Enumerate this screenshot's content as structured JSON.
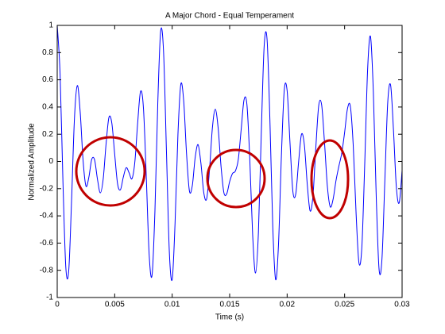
{
  "chart_data": {
    "type": "line",
    "title": "A Major Chord - Equal Temperament",
    "xlabel": "Time (s)",
    "ylabel": "Normalized Amplitude",
    "color": "#0000ff",
    "grid": false,
    "xlim": [
      0,
      0.03
    ],
    "ylim": [
      -1,
      1
    ],
    "xticks": [
      0,
      0.005,
      0.01,
      0.015,
      0.02,
      0.025,
      0.03
    ],
    "yticks": [
      -1,
      -0.8,
      -0.6,
      -0.4,
      -0.2,
      0,
      0.2,
      0.4,
      0.6,
      0.8,
      1
    ],
    "x": [
      0,
      0.00025,
      0.0005,
      0.00075,
      0.001,
      0.00125,
      0.0015,
      0.00175,
      0.002,
      0.00225,
      0.0025,
      0.00275,
      0.003,
      0.00325,
      0.0035,
      0.00375,
      0.004,
      0.00425,
      0.0045,
      0.00475,
      0.005,
      0.00525,
      0.0055,
      0.00575,
      0.006,
      0.00625,
      0.0065,
      0.00675,
      0.007,
      0.00725,
      0.0075,
      0.00775,
      0.008,
      0.00825,
      0.0085,
      0.00875,
      0.009,
      0.00925,
      0.0095,
      0.00975,
      0.01,
      0.01025,
      0.0105,
      0.01075,
      0.011,
      0.01125,
      0.0115,
      0.01175,
      0.012,
      0.01225,
      0.0125,
      0.01275,
      0.013,
      0.01325,
      0.0135,
      0.01375,
      0.014,
      0.01425,
      0.0145,
      0.01475,
      0.015,
      0.01525,
      0.0155,
      0.01575,
      0.016,
      0.01625,
      0.0165,
      0.01675,
      0.017,
      0.01725,
      0.0175,
      0.01775,
      0.018,
      0.01825,
      0.0185,
      0.01875,
      0.019,
      0.01925,
      0.0195,
      0.01975,
      0.02,
      0.02025,
      0.0205,
      0.02075,
      0.021,
      0.02125,
      0.0215,
      0.02175,
      0.022,
      0.02225,
      0.0225,
      0.02275,
      0.023,
      0.02325,
      0.0235,
      0.02375,
      0.024,
      0.02425,
      0.0245,
      0.02475,
      0.025,
      0.02525,
      0.0255,
      0.02575,
      0.026,
      0.02625,
      0.0265,
      0.02675,
      0.027,
      0.02725,
      0.0275,
      0.02775,
      0.028,
      0.02825,
      0.0285,
      0.02875,
      0.029,
      0.02925,
      0.0295,
      0.02975,
      0.03
    ],
    "values": [
      1,
      0.642,
      -0.154,
      -0.781,
      -0.804,
      -0.284,
      0.318,
      0.558,
      0.362,
      0.007,
      -0.181,
      -0.117,
      0.015,
      0.012,
      -0.13,
      -0.231,
      -0.129,
      0.129,
      0.324,
      0.282,
      0.053,
      -0.164,
      -0.208,
      -0.115,
      -0.046,
      -0.083,
      -0.127,
      -0.006,
      0.285,
      0.515,
      0.393,
      -0.119,
      -0.687,
      -0.836,
      -0.364,
      0.432,
      0.96,
      0.806,
      0.08,
      -0.658,
      -0.868,
      -0.455,
      0.195,
      0.566,
      0.447,
      0.056,
      -0.217,
      -0.179,
      0.028,
      0.124,
      -0.013,
      -0.23,
      -0.275,
      -0.059,
      0.248,
      0.384,
      0.245,
      -0.036,
      -0.23,
      -0.237,
      -0.148,
      -0.088,
      -0.07,
      0.014,
      0.233,
      0.452,
      0.42,
      0.019,
      -0.539,
      -0.82,
      -0.527,
      0.203,
      0.845,
      0.902,
      0.311,
      -0.477,
      -0.868,
      -0.608,
      0.037,
      0.524,
      0.52,
      0.135,
      -0.221,
      -0.239,
      -0.002,
      0.2,
      0.121,
      -0.167,
      -0.364,
      -0.249,
      0.108,
      0.412,
      0.417,
      0.141,
      -0.183,
      -0.333,
      -0.277,
      -0.141,
      -0.035,
      0.06,
      0.213,
      0.388,
      0.405,
      0.117,
      -0.385,
      -0.747,
      -0.628,
      -0.019,
      0.673,
      0.919,
      0.508,
      -0.258,
      -0.795,
      -0.716,
      -0.14,
      0.432,
      0.561,
      0.232,
      -0.188,
      -0.304,
      -0.066
    ]
  }
}
